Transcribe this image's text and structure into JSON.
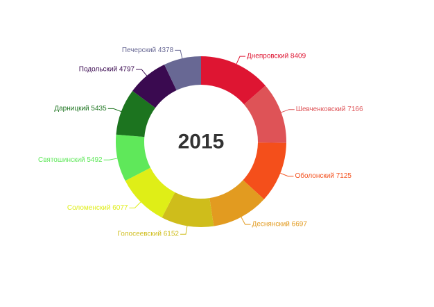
{
  "chart_data": {
    "type": "pie",
    "title": "2015",
    "slices": [
      {
        "label": "Днепровский",
        "value": 8409,
        "color": "#de1532"
      },
      {
        "label": "Шевченковский",
        "value": 7166,
        "color": "#de5357"
      },
      {
        "label": "Оболонский",
        "value": 7125,
        "color": "#f44f1b"
      },
      {
        "label": "Деснянский",
        "value": 6697,
        "color": "#e29b20"
      },
      {
        "label": "Голосеевский",
        "value": 6152,
        "color": "#cfbd1b"
      },
      {
        "label": "Соломенский",
        "value": 6077,
        "color": "#dfee17"
      },
      {
        "label": "Святошинский",
        "value": 5492,
        "color": "#5fe85a"
      },
      {
        "label": "Дарницкий",
        "value": 5435,
        "color": "#1c741f"
      },
      {
        "label": "Подольский",
        "value": 4797,
        "color": "#3a0a50"
      },
      {
        "label": "Печерский",
        "value": 4378,
        "color": "#686894"
      }
    ]
  }
}
